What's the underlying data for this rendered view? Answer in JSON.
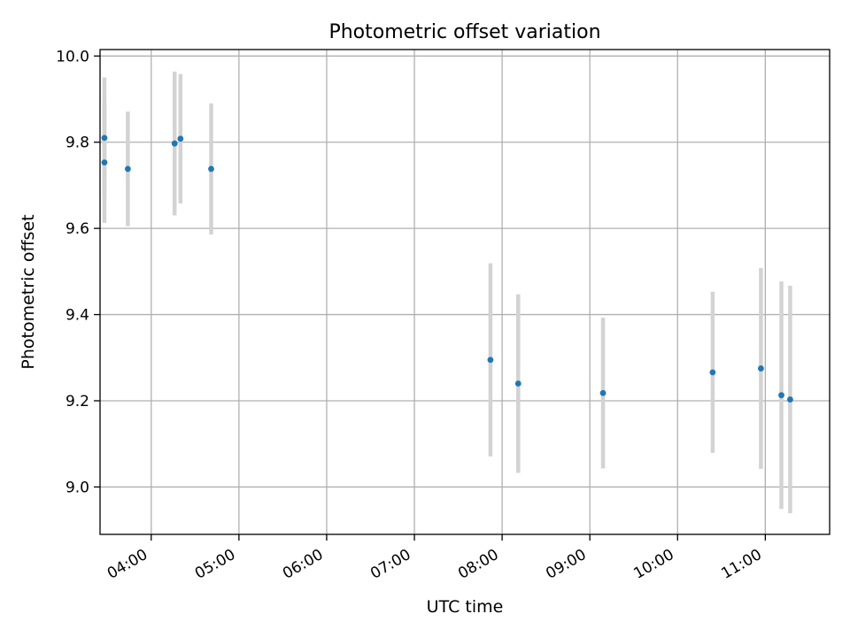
{
  "chart_data": {
    "type": "scatter",
    "title": "Photometric offset variation",
    "xlabel": "UTC time",
    "ylabel": "Photometric offset",
    "grid": true,
    "xlim": [
      "03:25",
      "11:44"
    ],
    "ylim": [
      8.89,
      10.015
    ],
    "x_ticks": [
      "04:00",
      "05:00",
      "06:00",
      "07:00",
      "08:00",
      "09:00",
      "10:00",
      "11:00"
    ],
    "y_ticks": [
      9.0,
      9.2,
      9.4,
      9.6,
      9.8,
      10.0
    ],
    "y_tick_labels": [
      "9.0",
      "9.2",
      "9.4",
      "9.6",
      "9.8",
      "10.0"
    ],
    "series": [
      {
        "name": "offset",
        "marker_color": "#1f77b4",
        "errorbar_color": "#d3d3d3",
        "points": [
          {
            "x": "03:28",
            "y": 9.81,
            "err": 0.14
          },
          {
            "x": "03:28",
            "y": 9.753,
            "err": 0.14
          },
          {
            "x": "03:44",
            "y": 9.738,
            "err": 0.133
          },
          {
            "x": "04:16",
            "y": 9.797,
            "err": 0.167
          },
          {
            "x": "04:20",
            "y": 9.808,
            "err": 0.15
          },
          {
            "x": "04:41",
            "y": 9.738,
            "err": 0.152
          },
          {
            "x": "07:52",
            "y": 9.295,
            "err": 0.224
          },
          {
            "x": "08:11",
            "y": 9.24,
            "err": 0.207
          },
          {
            "x": "09:09",
            "y": 9.218,
            "err": 0.175
          },
          {
            "x": "10:24",
            "y": 9.266,
            "err": 0.187
          },
          {
            "x": "10:57",
            "y": 9.275,
            "err": 0.233
          },
          {
            "x": "11:11",
            "y": 9.213,
            "err": 0.264
          },
          {
            "x": "11:17",
            "y": 9.203,
            "err": 0.264
          }
        ]
      }
    ]
  }
}
